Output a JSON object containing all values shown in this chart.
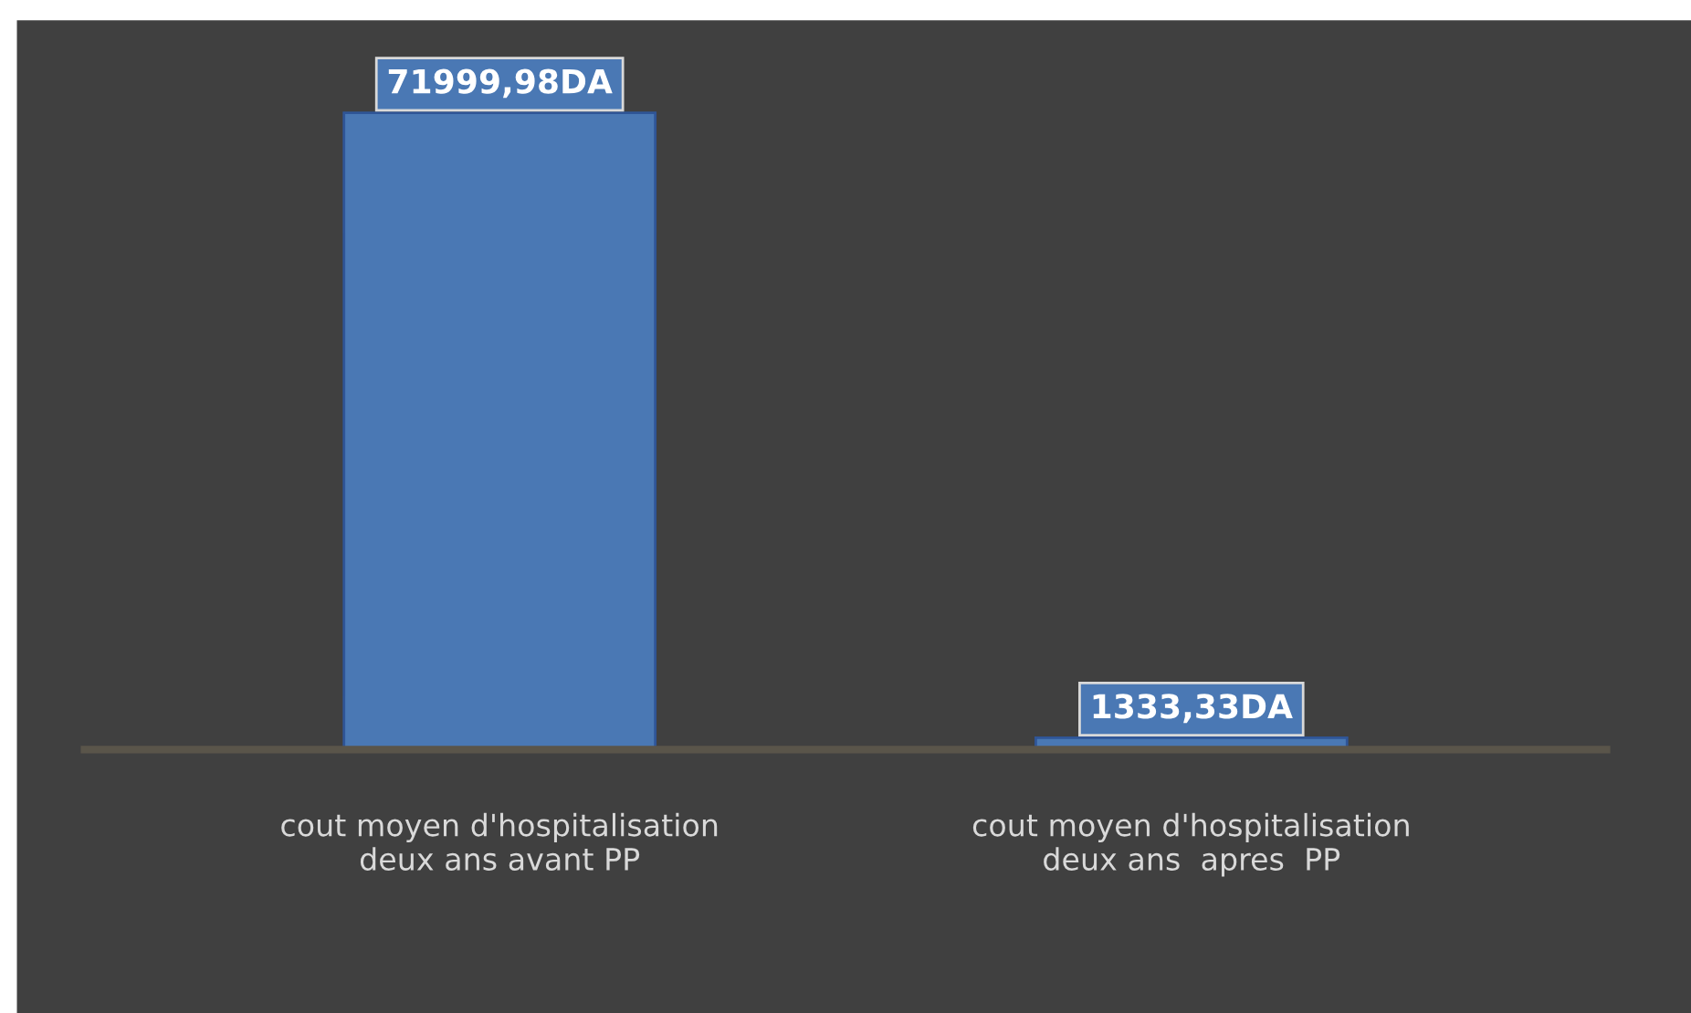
{
  "chart_data": {
    "type": "bar",
    "categories": [
      "cout moyen d'hospitalisation\ndeux ans avant PP",
      "cout moyen d'hospitalisation\ndeux ans  apres  PP"
    ],
    "values": [
      71999.98,
      1333.33
    ],
    "value_labels": [
      "71999,98DA",
      "1333,33DA"
    ],
    "color": "#4a78b4",
    "grid": false,
    "legend": false
  }
}
